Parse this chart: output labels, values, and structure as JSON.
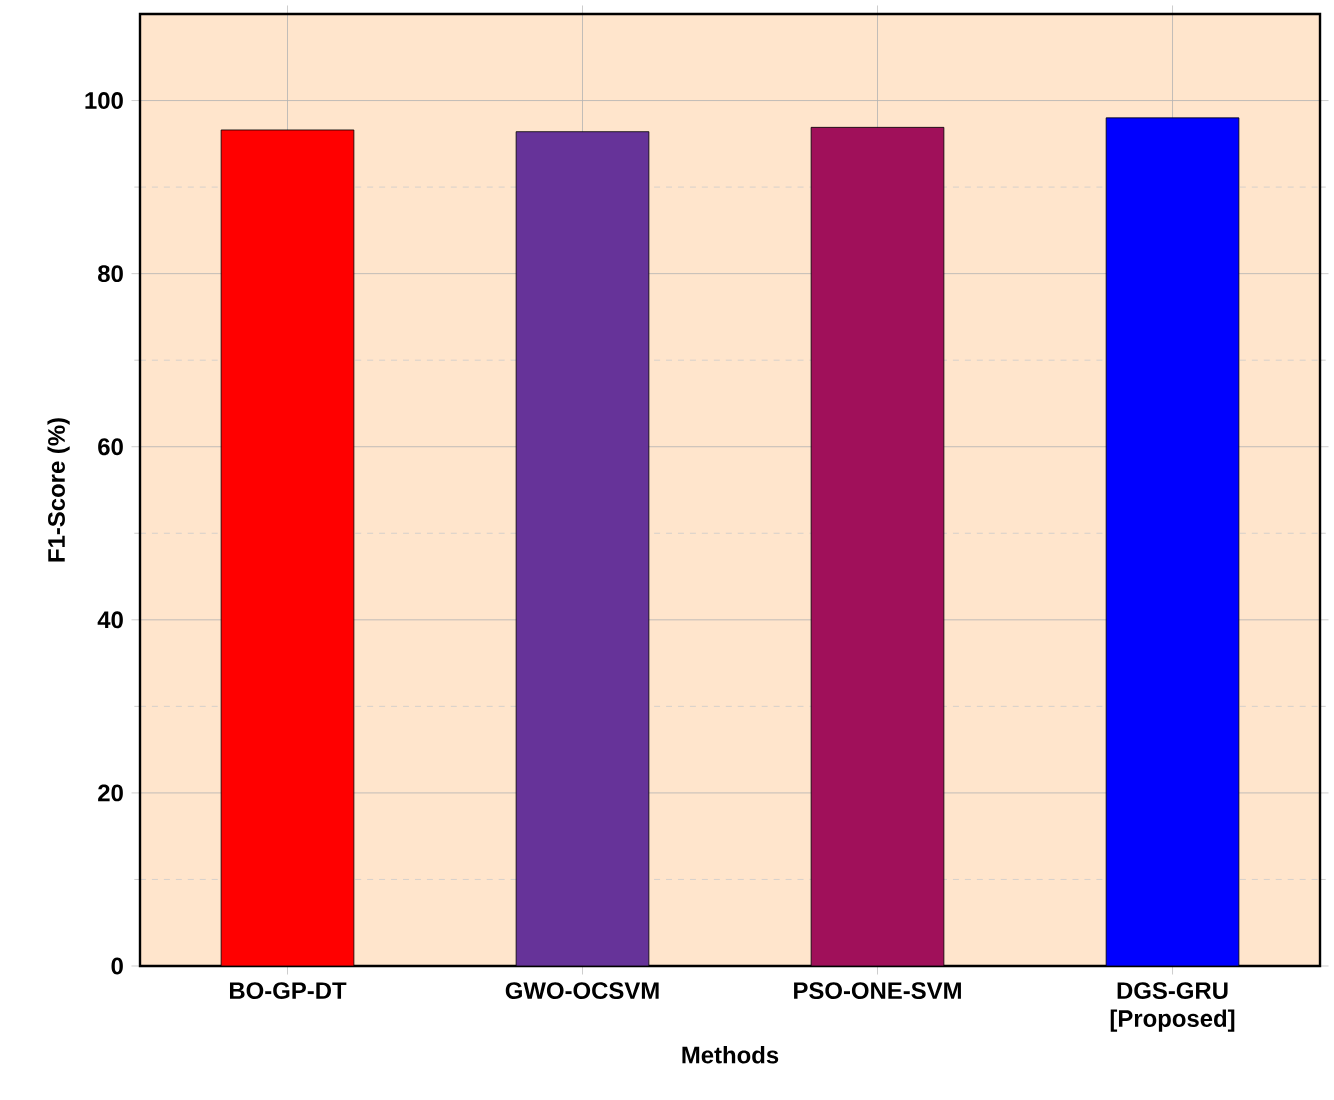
{
  "chart_data": {
    "type": "bar",
    "xlabel": "Methods",
    "ylabel": "F1-Score (%)",
    "categories": [
      "BO-GP-DT",
      "GWO-OCSVM",
      "PSO-ONE-SVM",
      "DGS-GRU [Proposed]"
    ],
    "values": [
      96.6,
      96.4,
      96.9,
      98.0
    ],
    "colors": [
      "#ff0000",
      "#663399",
      "#a0105a",
      "#0000ff"
    ],
    "ylim": [
      0,
      110
    ],
    "yticks": [
      0,
      20,
      40,
      60,
      80,
      100
    ],
    "grid": true
  }
}
